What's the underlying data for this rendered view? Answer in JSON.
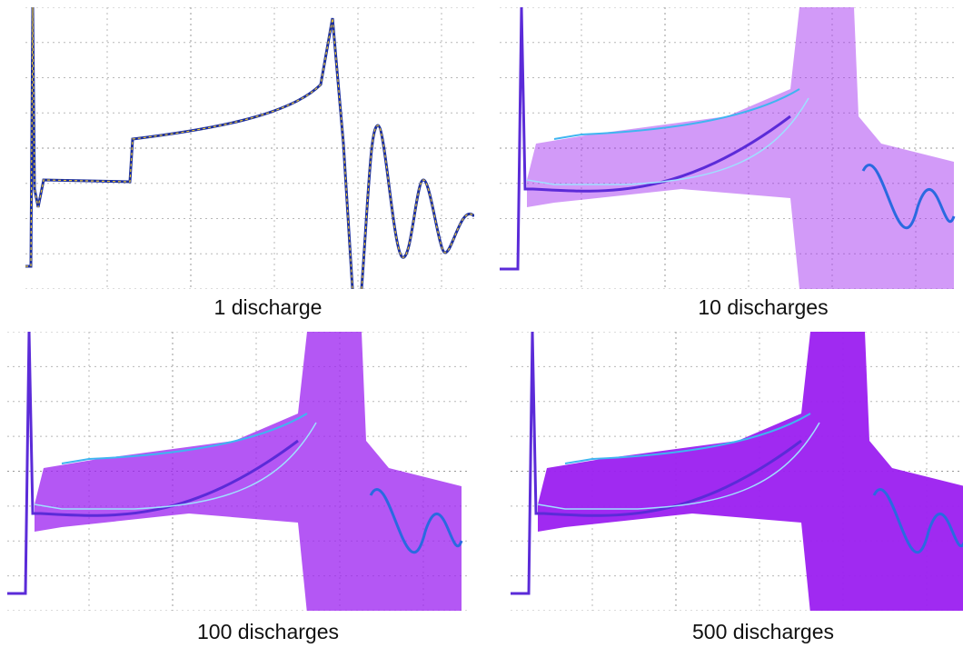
{
  "panels": [
    {
      "caption": "1 discharge"
    },
    {
      "caption": "10 discharges"
    },
    {
      "caption": "100 discharges"
    },
    {
      "caption": "500 discharges"
    }
  ]
}
